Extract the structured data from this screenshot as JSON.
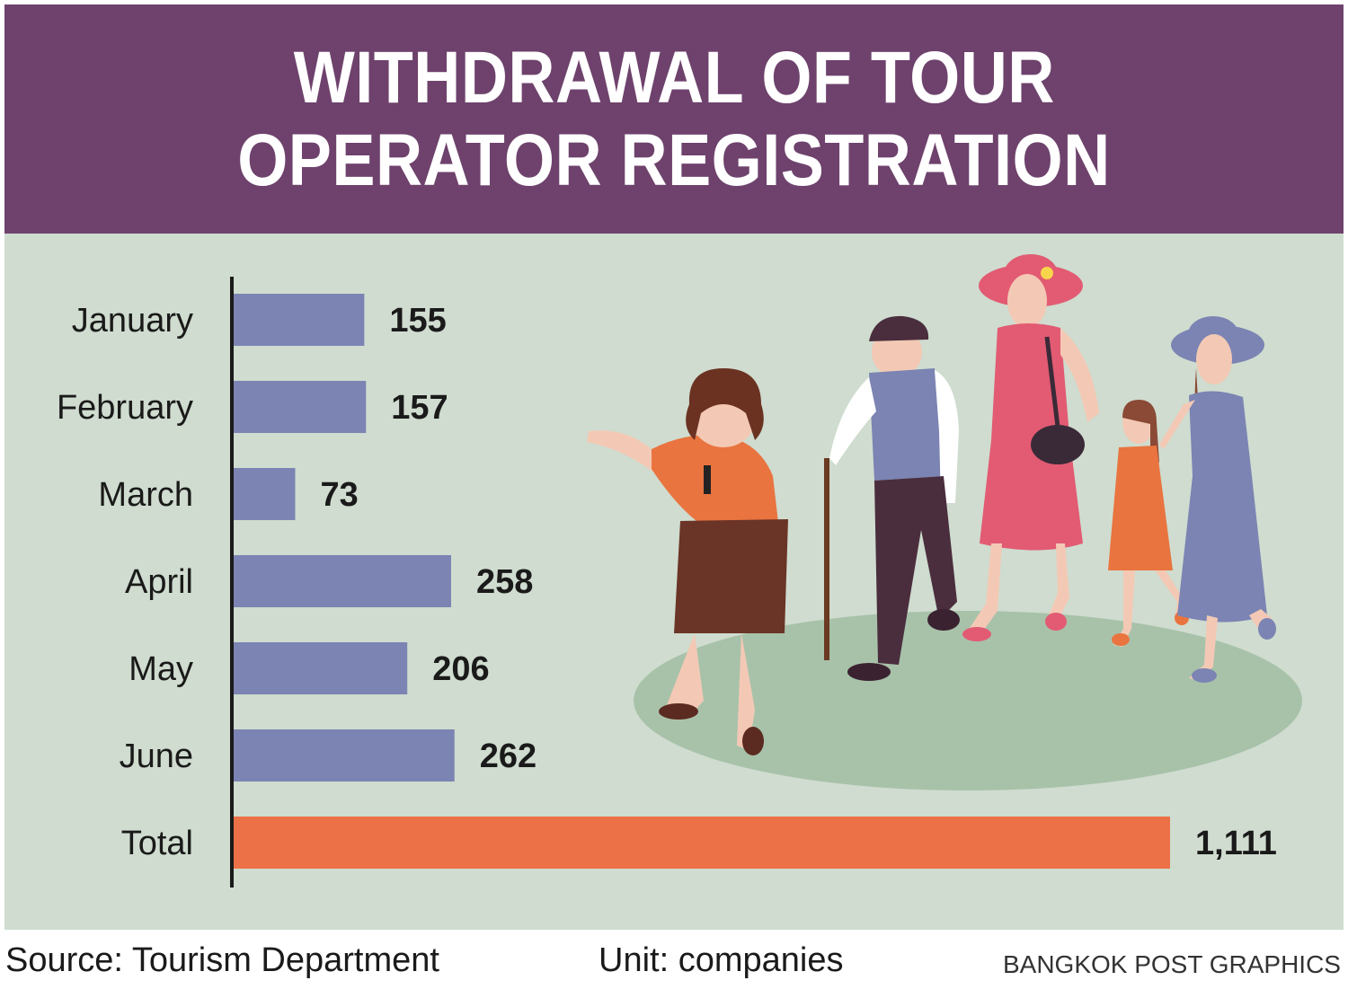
{
  "header": {
    "title_line1": "WITHDRAWAL OF TOUR",
    "title_line2": "OPERATOR REGISTRATION"
  },
  "chart_data": {
    "type": "bar",
    "orientation": "horizontal",
    "title": "WITHDRAWAL OF TOUR OPERATOR REGISTRATION",
    "categories": [
      "January",
      "February",
      "March",
      "April",
      "May",
      "June",
      "Total"
    ],
    "values": [
      155,
      157,
      73,
      258,
      206,
      262,
      1111
    ],
    "value_labels": [
      "155",
      "157",
      "73",
      "258",
      "206",
      "262",
      "1,111"
    ],
    "xlim": [
      0,
      1111
    ],
    "grid": false,
    "legend": "none",
    "colors": {
      "month_bar": "#7b84b3",
      "total_bar": "#ec7146",
      "header_bg": "#6e426c",
      "panel_bg": "#cfdccf"
    }
  },
  "footer": {
    "source": "Source: Tourism Department",
    "unit": "Unit: companies",
    "credit": "BANGKOK POST GRAPHICS"
  },
  "illustration": {
    "icon": "tour-group-illustration"
  }
}
